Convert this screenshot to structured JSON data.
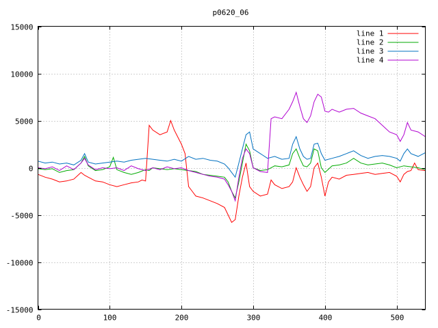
{
  "chart_data": {
    "type": "line",
    "title": "p0620_06",
    "xlim": [
      0,
      540
    ],
    "ylim": [
      -15000,
      15000
    ],
    "x_ticks": [
      0,
      100,
      200,
      300,
      400,
      500
    ],
    "y_ticks": [
      -15000,
      -10000,
      -5000,
      0,
      5000,
      10000,
      15000
    ],
    "x_tick_labels": [
      "0",
      "100",
      "200",
      "300",
      "400",
      "500"
    ],
    "y_tick_labels": [
      "-15000",
      "-10000",
      "-5000",
      "0",
      "5000",
      "10000",
      "15000"
    ],
    "grid": true,
    "legend_position": "top-right",
    "series": [
      {
        "name": "line 1",
        "color": "#ff0000",
        "x": [
          0,
          10,
          20,
          30,
          40,
          50,
          60,
          65,
          70,
          80,
          90,
          100,
          110,
          120,
          130,
          140,
          145,
          150,
          155,
          160,
          170,
          180,
          185,
          190,
          200,
          205,
          210,
          215,
          220,
          230,
          240,
          250,
          260,
          265,
          270,
          275,
          280,
          285,
          290,
          295,
          300,
          310,
          320,
          325,
          330,
          340,
          350,
          355,
          360,
          365,
          370,
          375,
          380,
          385,
          390,
          395,
          400,
          405,
          410,
          420,
          430,
          440,
          450,
          460,
          470,
          480,
          490,
          500,
          505,
          510,
          515,
          520,
          525,
          530,
          540
        ],
        "y": [
          -700,
          -1000,
          -1200,
          -1500,
          -1400,
          -1200,
          -500,
          -800,
          -1000,
          -1400,
          -1500,
          -1800,
          -2000,
          -1800,
          -1600,
          -1500,
          -1300,
          -1400,
          4500,
          4000,
          3500,
          3800,
          5000,
          4000,
          2500,
          1500,
          -2000,
          -2500,
          -3000,
          -3200,
          -3500,
          -3800,
          -4200,
          -5000,
          -5800,
          -5500,
          -3000,
          -1000,
          500,
          -2000,
          -2500,
          -3000,
          -2800,
          -1300,
          -1800,
          -2200,
          -2000,
          -1500,
          0,
          -1000,
          -1800,
          -2500,
          -2000,
          0,
          500,
          -1000,
          -3000,
          -1500,
          -1000,
          -1200,
          -800,
          -700,
          -600,
          -500,
          -700,
          -600,
          -500,
          -900,
          -1500,
          -700,
          -400,
          -300,
          500,
          -200,
          -300
        ]
      },
      {
        "name": "line 2",
        "color": "#00aa00",
        "x": [
          0,
          10,
          20,
          30,
          40,
          50,
          60,
          65,
          70,
          80,
          90,
          100,
          105,
          110,
          120,
          130,
          140,
          150,
          155,
          160,
          170,
          180,
          190,
          200,
          210,
          220,
          230,
          240,
          250,
          260,
          265,
          270,
          275,
          280,
          285,
          290,
          295,
          300,
          310,
          320,
          330,
          340,
          350,
          355,
          360,
          365,
          370,
          375,
          380,
          385,
          390,
          395,
          400,
          410,
          420,
          430,
          440,
          450,
          460,
          470,
          480,
          490,
          500,
          510,
          520,
          530,
          540
        ],
        "y": [
          -100,
          -200,
          -100,
          -500,
          -300,
          -200,
          500,
          1200,
          200,
          -300,
          -200,
          100,
          1100,
          -200,
          -500,
          -700,
          -500,
          -200,
          -300,
          0,
          -100,
          -200,
          -100,
          -200,
          -300,
          -400,
          -700,
          -800,
          -900,
          -1000,
          -1500,
          -2500,
          -3200,
          -1500,
          500,
          2500,
          1800,
          0,
          -300,
          -200,
          200,
          100,
          300,
          1500,
          2000,
          1000,
          200,
          100,
          500,
          2000,
          1800,
          0,
          -500,
          200,
          300,
          500,
          1000,
          500,
          300,
          400,
          500,
          300,
          0,
          200,
          100,
          0,
          -200
        ]
      },
      {
        "name": "line 3",
        "color": "#0070c0",
        "x": [
          0,
          10,
          20,
          30,
          40,
          50,
          60,
          65,
          70,
          80,
          90,
          100,
          110,
          120,
          130,
          140,
          150,
          160,
          170,
          180,
          190,
          200,
          210,
          220,
          230,
          240,
          250,
          260,
          265,
          270,
          275,
          280,
          285,
          290,
          295,
          300,
          310,
          320,
          330,
          340,
          350,
          355,
          360,
          365,
          370,
          375,
          380,
          385,
          390,
          395,
          400,
          410,
          420,
          430,
          440,
          450,
          460,
          470,
          480,
          490,
          500,
          505,
          510,
          515,
          520,
          530,
          540
        ],
        "y": [
          700,
          500,
          600,
          400,
          500,
          300,
          800,
          1500,
          600,
          400,
          500,
          600,
          700,
          600,
          800,
          900,
          1000,
          900,
          800,
          700,
          900,
          700,
          1200,
          900,
          1000,
          800,
          700,
          400,
          0,
          -500,
          -1000,
          500,
          2000,
          3500,
          3800,
          2000,
          1500,
          1000,
          1200,
          900,
          1000,
          2500,
          3300,
          2000,
          1200,
          900,
          1000,
          2500,
          2600,
          1500,
          800,
          1000,
          1200,
          1500,
          1800,
          1300,
          1000,
          1200,
          1300,
          1200,
          1000,
          700,
          1500,
          2000,
          1500,
          1200,
          1600
        ]
      },
      {
        "name": "line 4",
        "color": "#b000d0",
        "x": [
          0,
          10,
          20,
          30,
          40,
          50,
          60,
          65,
          70,
          80,
          90,
          100,
          110,
          120,
          130,
          140,
          150,
          160,
          170,
          180,
          190,
          200,
          210,
          220,
          230,
          240,
          250,
          260,
          265,
          270,
          275,
          280,
          285,
          290,
          295,
          300,
          310,
          320,
          325,
          330,
          340,
          350,
          355,
          360,
          365,
          370,
          375,
          380,
          385,
          390,
          395,
          400,
          405,
          410,
          420,
          430,
          440,
          450,
          460,
          470,
          480,
          490,
          500,
          505,
          510,
          515,
          520,
          530,
          540
        ],
        "y": [
          0,
          -100,
          100,
          -300,
          200,
          -200,
          500,
          1000,
          300,
          -200,
          0,
          -100,
          0,
          -300,
          200,
          -100,
          -300,
          0,
          -200,
          100,
          -100,
          0,
          -300,
          -500,
          -700,
          -900,
          -1000,
          -1200,
          -1800,
          -2500,
          -3500,
          -1000,
          1000,
          2000,
          1500,
          0,
          -400,
          -500,
          5200,
          5400,
          5200,
          6200,
          7000,
          8000,
          6500,
          5200,
          4800,
          5500,
          7000,
          7800,
          7500,
          6000,
          5900,
          6200,
          5900,
          6200,
          6300,
          5800,
          5500,
          5200,
          4500,
          3800,
          3500,
          2800,
          3500,
          4800,
          4000,
          3800,
          3300
        ]
      }
    ]
  }
}
